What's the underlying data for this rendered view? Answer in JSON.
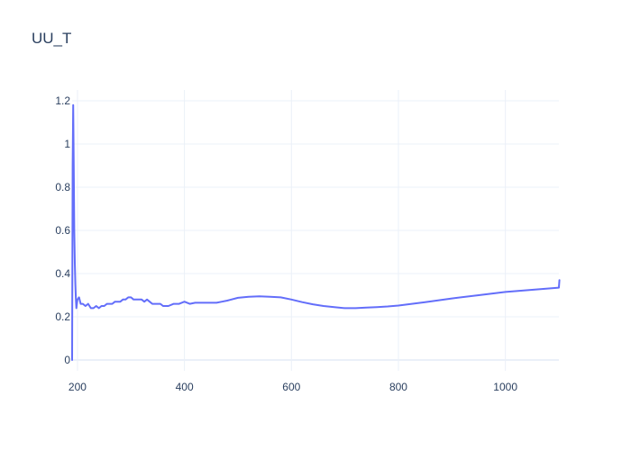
{
  "chart_data": {
    "type": "line",
    "title": "UU_T",
    "xlabel": "",
    "ylabel": "",
    "xlim": [
      190,
      1100
    ],
    "ylim": [
      -0.05,
      1.25
    ],
    "grid": true,
    "x_ticks": [
      200,
      400,
      600,
      800,
      1000
    ],
    "x_tick_labels": [
      "200",
      "400",
      "600",
      "800",
      "1000"
    ],
    "y_ticks": [
      0,
      0.2,
      0.4,
      0.6,
      0.8,
      1,
      1.2
    ],
    "y_tick_labels": [
      "0",
      "0.2",
      "0.4",
      "0.6",
      "0.8",
      "1",
      "1.2"
    ],
    "line_color": "#636efa",
    "series": [
      {
        "x": [
          190,
          191,
          192,
          193,
          194,
          195,
          196,
          197,
          198,
          200,
          203,
          206,
          210,
          215,
          220,
          225,
          230,
          235,
          240,
          245,
          250,
          255,
          260,
          265,
          270,
          275,
          280,
          285,
          290,
          295,
          300,
          305,
          310,
          315,
          320,
          325,
          330,
          335,
          340,
          345,
          350,
          355,
          360,
          365,
          370,
          380,
          390,
          400,
          410,
          420,
          430,
          440,
          450,
          460,
          470,
          480,
          500,
          520,
          540,
          560,
          580,
          600,
          620,
          640,
          660,
          680,
          700,
          720,
          740,
          760,
          780,
          800,
          850,
          900,
          950,
          1000,
          1050,
          1100,
          1101
        ],
        "y": [
          0.0,
          0.9,
          1.18,
          0.9,
          0.6,
          0.45,
          0.35,
          0.28,
          0.24,
          0.28,
          0.29,
          0.26,
          0.26,
          0.25,
          0.26,
          0.24,
          0.24,
          0.25,
          0.24,
          0.25,
          0.25,
          0.26,
          0.26,
          0.26,
          0.27,
          0.27,
          0.27,
          0.28,
          0.28,
          0.29,
          0.29,
          0.28,
          0.28,
          0.28,
          0.28,
          0.27,
          0.28,
          0.27,
          0.26,
          0.26,
          0.26,
          0.26,
          0.25,
          0.25,
          0.25,
          0.26,
          0.26,
          0.27,
          0.26,
          0.265,
          0.265,
          0.265,
          0.265,
          0.265,
          0.27,
          0.275,
          0.288,
          0.293,
          0.295,
          0.293,
          0.29,
          0.28,
          0.268,
          0.258,
          0.25,
          0.245,
          0.24,
          0.24,
          0.243,
          0.245,
          0.248,
          0.252,
          0.268,
          0.285,
          0.3,
          0.315,
          0.325,
          0.335,
          0.37
        ]
      }
    ]
  }
}
